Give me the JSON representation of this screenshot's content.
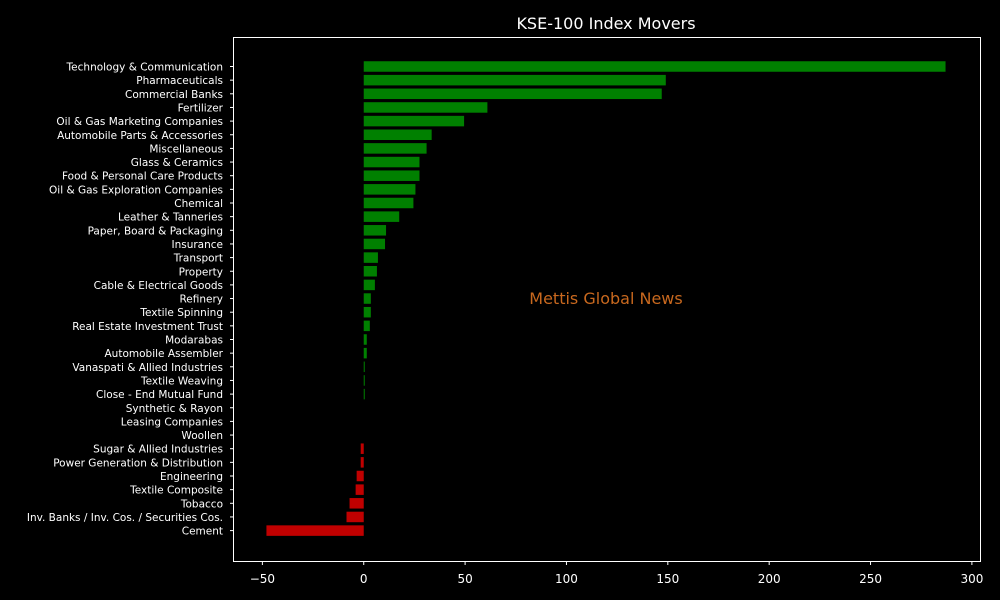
{
  "chart_data": {
    "type": "bar",
    "orientation": "horizontal",
    "title": "KSE-100 Index Movers",
    "xlabel": "",
    "ylabel": "",
    "xlim": [
      -64,
      304
    ],
    "xticks": [
      -50,
      0,
      50,
      100,
      150,
      200,
      250,
      300
    ],
    "grid": false,
    "annotation": "Mettis Global News",
    "colors": {
      "positive": "#008000",
      "negative": "#c00000",
      "background": "#000000",
      "text": "#ffffff",
      "annotation": "#c8681e"
    },
    "categories": [
      "Technology & Communication",
      "Pharmaceuticals",
      "Commercial Banks",
      "Fertilizer",
      "Oil & Gas Marketing Companies",
      "Automobile Parts & Accessories",
      "Miscellaneous",
      "Glass & Ceramics",
      "Food & Personal Care Products",
      "Oil & Gas Exploration Companies",
      "Chemical",
      "Leather & Tanneries",
      "Paper, Board & Packaging",
      "Insurance",
      "Transport",
      "Property",
      "Cable & Electrical Goods",
      "Refinery",
      "Textile Spinning",
      "Real Estate Investment Trust",
      "Modarabas",
      "Automobile Assembler",
      "Vanaspati & Allied Industries",
      "Textile Weaving",
      "Close - End Mutual Fund",
      "Synthetic & Rayon",
      "Leasing Companies",
      "Woollen",
      "Sugar & Allied Industries",
      "Power Generation & Distribution",
      "Engineering",
      "Textile Composite",
      "Tobacco",
      "Inv. Banks / Inv. Cos. / Securities Cos.",
      "Cement"
    ],
    "values": [
      287,
      149,
      147,
      61,
      49.5,
      33.5,
      31,
      27.5,
      27.5,
      25.5,
      24.5,
      17.5,
      11,
      10.5,
      7,
      6.5,
      5.5,
      3.5,
      3.5,
      3,
      1.5,
      1.5,
      0.5,
      0.5,
      0.5,
      0,
      0,
      0,
      -1.5,
      -1.5,
      -3.5,
      -4,
      -7,
      -8.5,
      -48
    ]
  }
}
